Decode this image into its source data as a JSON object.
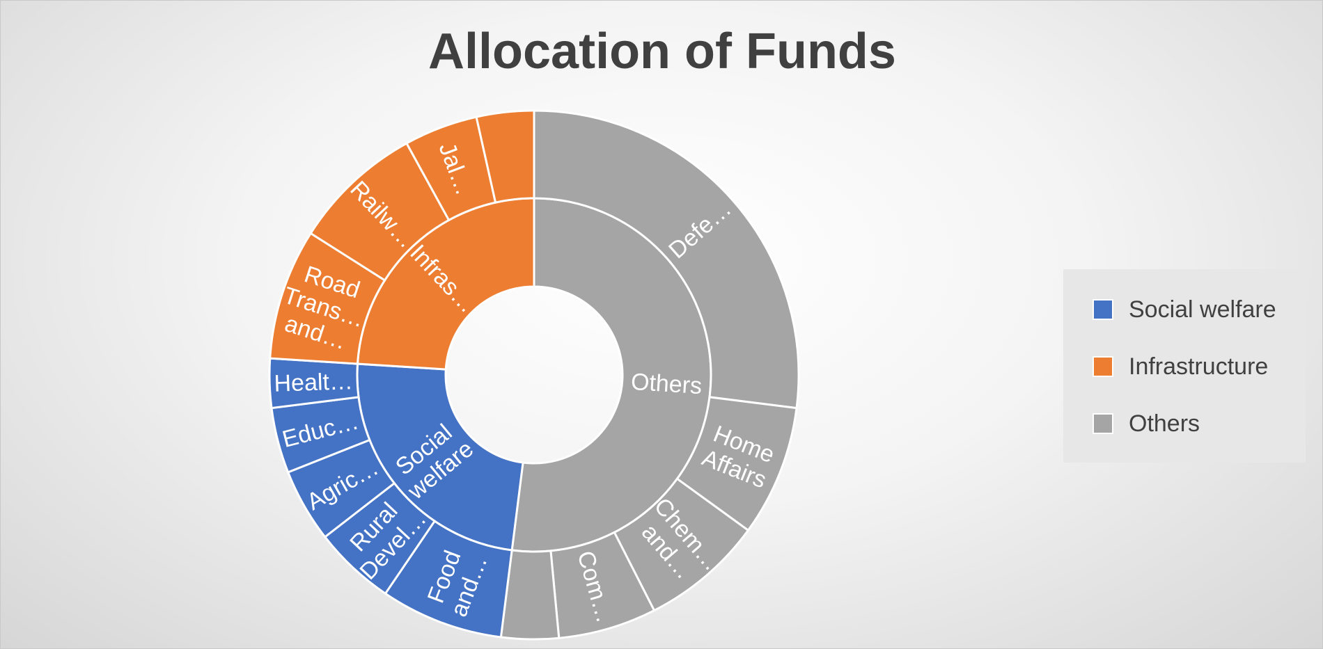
{
  "chart_data": {
    "type": "sunburst",
    "title": "Allocation of Funds",
    "legend_position": "right",
    "colors": {
      "Social welfare": "#4472c4",
      "Infrastructure": "#ed7d31",
      "Others": "#a5a5a5"
    },
    "inner_ring": [
      {
        "name": "Social welfare",
        "label": [
          "Social",
          "welfare"
        ],
        "value": 24
      },
      {
        "name": "Infrastructure",
        "label": [
          "Infras…"
        ],
        "value": 24
      },
      {
        "name": "Others",
        "label": [
          "Others"
        ],
        "value": 52
      }
    ],
    "outer_ring": [
      {
        "parent": "Social welfare",
        "label": [
          "Food",
          "and…"
        ],
        "value": 7.5
      },
      {
        "parent": "Social welfare",
        "label": [
          "Rural",
          "Devel…"
        ],
        "value": 5.0
      },
      {
        "parent": "Social welfare",
        "label": [
          "Agric…"
        ],
        "value": 4.5
      },
      {
        "parent": "Social welfare",
        "label": [
          "Educ…"
        ],
        "value": 4.0
      },
      {
        "parent": "Social welfare",
        "label": [
          "Healt…"
        ],
        "value": 3.0
      },
      {
        "parent": "Infrastructure",
        "label": [
          "Road",
          "Trans…",
          "and…"
        ],
        "value": 8.0
      },
      {
        "parent": "Infrastructure",
        "label": [
          "Railw…"
        ],
        "value": 8.0
      },
      {
        "parent": "Infrastructure",
        "label": [
          "Jal…"
        ],
        "value": 4.5
      },
      {
        "parent": "Infrastructure",
        "label": [
          ""
        ],
        "value": 3.5
      },
      {
        "parent": "Others",
        "label": [
          "Defe…"
        ],
        "value": 27.0
      },
      {
        "parent": "Others",
        "label": [
          "Home",
          "Affairs"
        ],
        "value": 8.0
      },
      {
        "parent": "Others",
        "label": [
          "Chem…",
          "and…"
        ],
        "value": 7.5
      },
      {
        "parent": "Others",
        "label": [
          "Com…"
        ],
        "value": 6.0
      },
      {
        "parent": "Others",
        "label": [
          ""
        ],
        "value": 3.5
      }
    ]
  },
  "legend": {
    "items": [
      {
        "label": "Social welfare",
        "color": "#4472c4"
      },
      {
        "label": "Infrastructure",
        "color": "#ed7d31"
      },
      {
        "label": "Others",
        "color": "#a5a5a5"
      }
    ]
  }
}
